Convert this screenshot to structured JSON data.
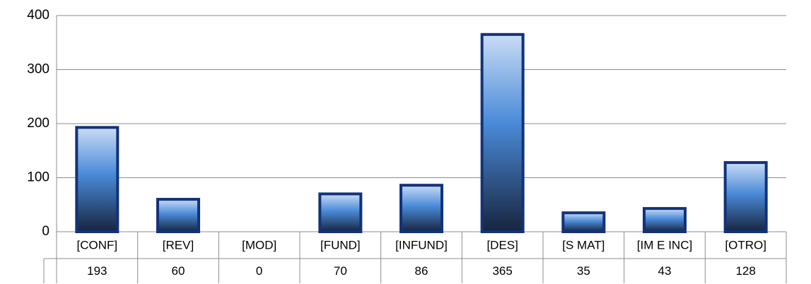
{
  "chart_data": {
    "type": "bar",
    "categories": [
      "[CONF]",
      "[REV]",
      "[MOD]",
      "[FUND]",
      "[INFUND]",
      "[DES]",
      "[S MAT]",
      "[IM E INC]",
      "[OTRO]"
    ],
    "values": [
      193,
      60,
      0,
      70,
      86,
      365,
      35,
      43,
      128
    ],
    "color": "#12327a",
    "ylim": [
      0,
      400
    ],
    "yticks": [
      0,
      100,
      200,
      300,
      400
    ],
    "grid": true
  }
}
